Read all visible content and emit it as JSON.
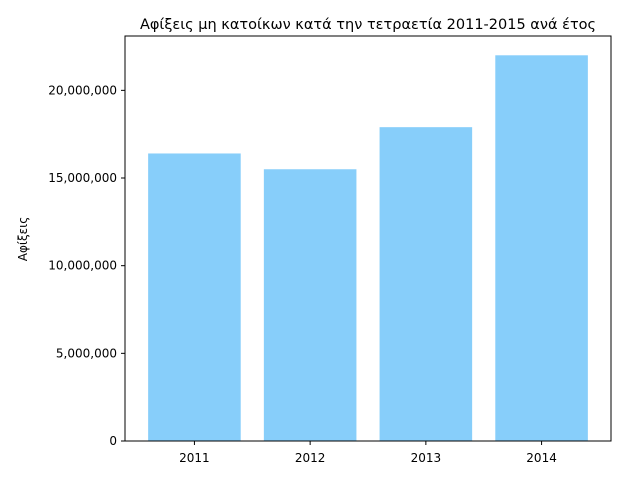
{
  "chart_data": {
    "type": "bar",
    "title": "Αφίξεις μη κατοίκων κατά την τετραετία 2011-2015 ανά έτος",
    "xlabel": "",
    "ylabel": "Αφίξεις",
    "categories": [
      "2011",
      "2012",
      "2013",
      "2014"
    ],
    "values": [
      16400000,
      15500000,
      17900000,
      22000000
    ],
    "ylim": [
      0,
      23100000
    ],
    "yticks": [
      0,
      5000000,
      10000000,
      15000000,
      20000000
    ],
    "ytick_labels": [
      "0",
      "5,000,000",
      "10,000,000",
      "15,000,000",
      "20,000,000"
    ],
    "colors": {
      "bar": "#87cefa"
    },
    "grid": false,
    "legend": false
  }
}
